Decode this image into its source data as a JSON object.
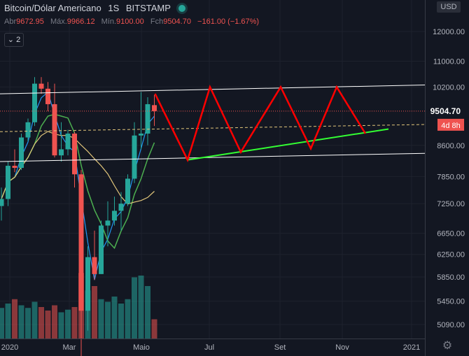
{
  "header": {
    "symbol": "Bitcoin/Dólar Americano",
    "interval": "1S",
    "exchange": "BITSTAMP"
  },
  "ohlc": {
    "open_label": "Abr",
    "open": "9672.95",
    "high_label": "Máx.",
    "high": "9966.12",
    "low_label": "Mín.",
    "low": "9100.00",
    "close_label": "Fch",
    "close": "9504.70",
    "change": "−161.00 (−1.67%)"
  },
  "indicators_toggle": "2",
  "currency": "USD",
  "price_axis": {
    "ticks": [
      "12000.00",
      "11000.00",
      "10200.00",
      "9504.70",
      "8600.00",
      "7850.00",
      "7250.00",
      "6650.00",
      "6250.00",
      "5850.00",
      "5450.00",
      "5090.00"
    ],
    "current_price": "9504.70",
    "countdown": "4d 8h",
    "colors": {
      "current_price_label": "#ef5350",
      "countdown_label": "#ef5350"
    }
  },
  "time_axis": {
    "ticks": [
      "2020",
      "Mar",
      "Maio",
      "Jul",
      "Set",
      "Nov",
      "2021"
    ]
  },
  "colors": {
    "background": "#131722",
    "bull": "#26a69a",
    "bear": "#ef5350",
    "drawing_zigzag": "#ff0000",
    "drawing_trendline": "#33ff33",
    "channel_lines": "#ffffff",
    "ma_fast": "#2196f3",
    "ma_mid": "#4caf50",
    "ma_slow": "#e3c77b"
  },
  "chart_data": {
    "type": "candlestick",
    "title": "",
    "interval": "1S",
    "candles": [
      {
        "o": 7200,
        "h": 7600,
        "l": 6900,
        "c": 7350
      },
      {
        "o": 7350,
        "h": 8200,
        "l": 7200,
        "c": 8100
      },
      {
        "o": 8100,
        "h": 8500,
        "l": 7950,
        "c": 8050
      },
      {
        "o": 8050,
        "h": 8900,
        "l": 8000,
        "c": 8800
      },
      {
        "o": 8800,
        "h": 9300,
        "l": 8700,
        "c": 9200
      },
      {
        "o": 9200,
        "h": 10500,
        "l": 9100,
        "c": 10300
      },
      {
        "o": 10300,
        "h": 10500,
        "l": 10000,
        "c": 10150
      },
      {
        "o": 10150,
        "h": 10350,
        "l": 9500,
        "c": 9700
      },
      {
        "o": 9700,
        "h": 10300,
        "l": 8300,
        "c": 8350
      },
      {
        "o": 8350,
        "h": 9200,
        "l": 8200,
        "c": 8500
      },
      {
        "o": 8500,
        "h": 9000,
        "l": 8350,
        "c": 8900
      },
      {
        "o": 8900,
        "h": 8950,
        "l": 7600,
        "c": 7900
      },
      {
        "o": 7900,
        "h": 8000,
        "l": 4000,
        "c": 5300
      },
      {
        "o": 5300,
        "h": 6400,
        "l": 5000,
        "c": 6200
      },
      {
        "o": 6200,
        "h": 6700,
        "l": 5800,
        "c": 5900
      },
      {
        "o": 5900,
        "h": 6900,
        "l": 5900,
        "c": 6800
      },
      {
        "o": 6800,
        "h": 7300,
        "l": 6400,
        "c": 6900
      },
      {
        "o": 6900,
        "h": 7400,
        "l": 6800,
        "c": 7100
      },
      {
        "o": 7100,
        "h": 7500,
        "l": 6700,
        "c": 7250
      },
      {
        "o": 7250,
        "h": 7900,
        "l": 7200,
        "c": 7800
      },
      {
        "o": 7800,
        "h": 9200,
        "l": 7700,
        "c": 8850
      },
      {
        "o": 8850,
        "h": 10050,
        "l": 8500,
        "c": 8900
      },
      {
        "o": 8900,
        "h": 9900,
        "l": 8600,
        "c": 9700
      },
      {
        "o": 9672.95,
        "h": 9966.12,
        "l": 9100.0,
        "c": 9504.7
      }
    ],
    "volume_relative": [
      0.35,
      0.4,
      0.45,
      0.38,
      0.35,
      0.42,
      0.36,
      0.32,
      0.38,
      0.3,
      0.33,
      0.36,
      0.75,
      0.55,
      0.6,
      0.45,
      0.42,
      0.48,
      0.4,
      0.45,
      0.7,
      0.72,
      0.6,
      0.22
    ],
    "y_axis": {
      "scale": "log",
      "range": [
        4900,
        13000
      ]
    },
    "x_axis": {
      "ticks": [
        "2020",
        "Mar",
        "Maio",
        "Jul",
        "Set",
        "Nov",
        "2021"
      ]
    },
    "grid": true
  }
}
